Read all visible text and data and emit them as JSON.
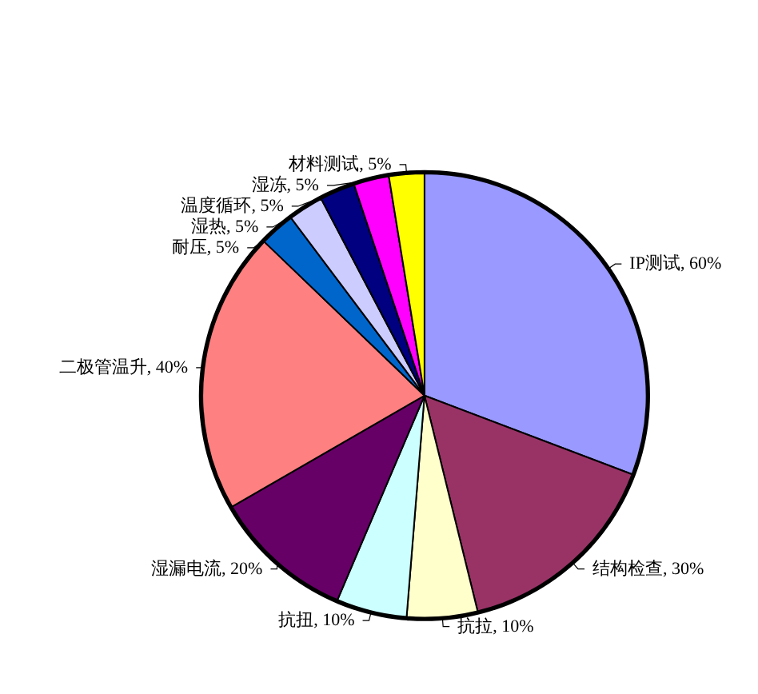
{
  "chart_data": {
    "type": "pie",
    "categories": [
      "IP测试",
      "结构检查",
      "抗拉",
      "抗扭",
      "湿漏电流",
      "二极管温升",
      "耐压",
      "湿热",
      "温度循环",
      "湿冻",
      "材料测试"
    ],
    "values": [
      60,
      30,
      10,
      10,
      20,
      40,
      5,
      5,
      5,
      5,
      5
    ],
    "value_labels": [
      "60%",
      "30%",
      "10%",
      "10%",
      "20%",
      "40%",
      "5%",
      "5%",
      "5%",
      "5%",
      "5%"
    ],
    "colors": [
      "#9999ff",
      "#993366",
      "#ffffcc",
      "#ccffff",
      "#660066",
      "#ff8080",
      "#0066cc",
      "#ccccff",
      "#000080",
      "#ff00ff",
      "#ffff00"
    ],
    "legend": false
  }
}
